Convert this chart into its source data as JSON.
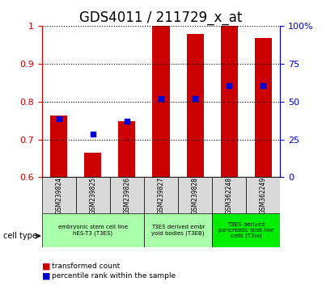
{
  "title": "GDS4011 / 211729_x_at",
  "samples": [
    "GSM239824",
    "GSM239825",
    "GSM239826",
    "GSM239827",
    "GSM239828",
    "GSM362248",
    "GSM362249"
  ],
  "red_values": [
    0.762,
    0.664,
    0.748,
    0.999,
    0.979,
    0.999,
    0.968
  ],
  "blue_values": [
    0.755,
    0.715,
    0.748,
    0.808,
    0.808,
    0.843,
    0.843
  ],
  "ylim": [
    0.6,
    1.0
  ],
  "yticks_left": [
    0.6,
    0.7,
    0.8,
    0.9,
    1.0
  ],
  "yticks_right": [
    0,
    25,
    50,
    75,
    100
  ],
  "ytick_labels_left": [
    "0.6",
    "0.7",
    "0.8",
    "0.9",
    "1"
  ],
  "ytick_labels_right": [
    "0",
    "25",
    "50",
    "75",
    "100%"
  ],
  "bar_color": "#cc0000",
  "dot_color": "#0000cc",
  "bar_width": 0.5,
  "cell_type_label": "cell type",
  "legend_red": "transformed count",
  "legend_blue": "percentile rank within the sample",
  "left_axis_color": "#cc0000",
  "right_axis_color": "#0000cc",
  "tick_label_fontsize": 8,
  "title_fontsize": 12,
  "sample_box_color": "#d9d9d9",
  "group_configs": [
    {
      "start": 0,
      "end": 2,
      "label": "embryonic stem cell line\nhES-T3 (T3ES)",
      "color": "#aaffaa"
    },
    {
      "start": 3,
      "end": 4,
      "label": "T3ES derived embr\nyoid bodies (T3EB)",
      "color": "#aaffaa"
    },
    {
      "start": 5,
      "end": 6,
      "label": "T3ES derived\npancreatic islet-like\ncells (T3pi)",
      "color": "#00ee00"
    }
  ]
}
